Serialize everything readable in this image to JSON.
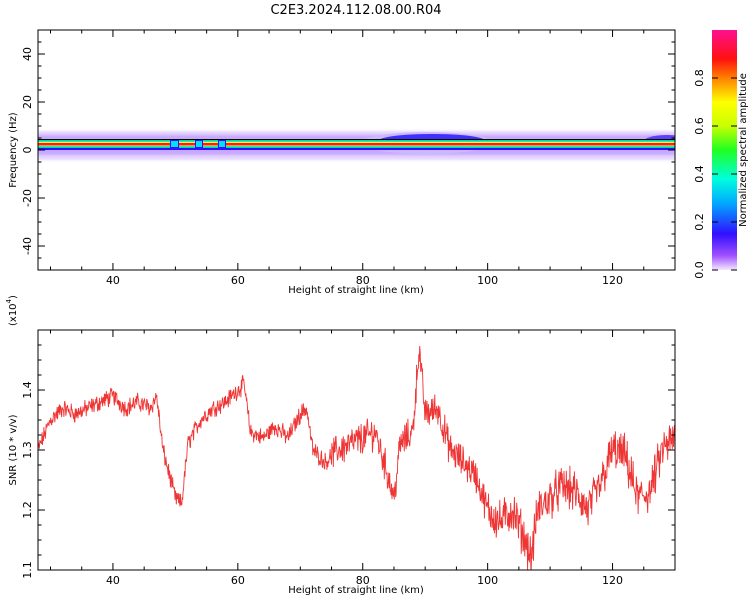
{
  "title": "C2E3.2024.112.08.00.R04",
  "chart_data": [
    {
      "type": "heatmap",
      "xlabel": "Height of straight line (km)",
      "ylabel": "Frequency (Hz)",
      "xlim": [
        28,
        130
      ],
      "ylim": [
        -50,
        50
      ],
      "x_ticks": [
        40,
        60,
        80,
        100,
        120
      ],
      "y_ticks": [
        -40,
        -20,
        0,
        20,
        40
      ],
      "colorbar": {
        "label": "Normalized spectral amplitude",
        "range": [
          0,
          1
        ],
        "ticks": [
          "0.0",
          "0.2",
          "0.4",
          "0.6",
          "0.8"
        ],
        "colormap": "rainbow (violet → blue → cyan → green → yellow → red → magenta)"
      },
      "signal_band_hz": [
        -1,
        5
      ],
      "peak_frequency_hz": 1.5,
      "broadening_regions_km": [
        [
          82,
          100
        ],
        [
          125,
          130
        ]
      ],
      "gaps_km": [
        50.8,
        54.8,
        58.8
      ]
    },
    {
      "type": "line",
      "xlabel": "Height of straight line (km)",
      "ylabel": "SNR (10 * v/v)",
      "y_multiplier_label": "(x10",
      "y_multiplier_exp": "4",
      "y_multiplier_close": ")",
      "xlim": [
        28,
        130
      ],
      "ylim": [
        1.1,
        1.5
      ],
      "x_ticks": [
        40,
        60,
        80,
        100,
        120
      ],
      "y_ticks": [
        "1.1",
        "1.2",
        "1.3",
        "1.4"
      ],
      "line_color": "#ef3434",
      "x": [
        28,
        30,
        32,
        34,
        36,
        38,
        40,
        42,
        44,
        46,
        47,
        48,
        49,
        50,
        51,
        52,
        54,
        56,
        58,
        60,
        61,
        62,
        64,
        66,
        68,
        70,
        71,
        72,
        74,
        76,
        78,
        80,
        82,
        84,
        85,
        86,
        88,
        89,
        90,
        92,
        94,
        96,
        98,
        100,
        102,
        104,
        106,
        107,
        108,
        110,
        112,
        114,
        116,
        118,
        120,
        122,
        124,
        126,
        128,
        130
      ],
      "y": [
        1.3,
        1.35,
        1.37,
        1.36,
        1.37,
        1.38,
        1.39,
        1.37,
        1.38,
        1.37,
        1.39,
        1.3,
        1.26,
        1.22,
        1.21,
        1.31,
        1.35,
        1.37,
        1.38,
        1.4,
        1.41,
        1.33,
        1.32,
        1.34,
        1.32,
        1.36,
        1.37,
        1.3,
        1.28,
        1.3,
        1.31,
        1.32,
        1.33,
        1.26,
        1.22,
        1.31,
        1.33,
        1.47,
        1.36,
        1.37,
        1.3,
        1.28,
        1.26,
        1.2,
        1.18,
        1.2,
        1.15,
        1.12,
        1.2,
        1.22,
        1.24,
        1.23,
        1.2,
        1.24,
        1.3,
        1.29,
        1.22,
        1.23,
        1.3,
        1.32
      ]
    }
  ]
}
